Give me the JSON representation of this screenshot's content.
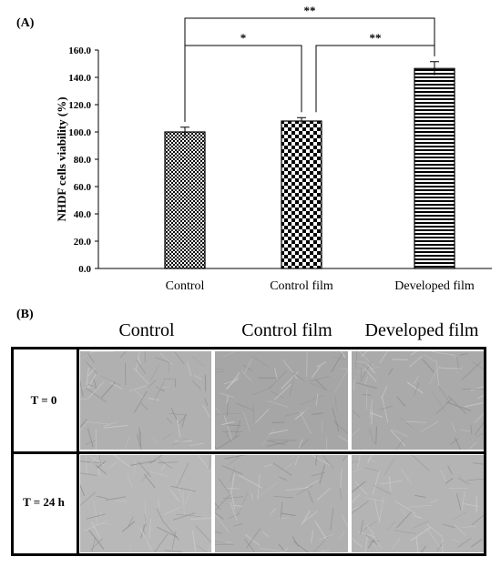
{
  "panel_a_label": "(A)",
  "panel_b_label": "(B)",
  "chart_data": {
    "type": "bar",
    "categories": [
      "Control",
      "Control film",
      "Developed film"
    ],
    "values": [
      100.0,
      108.0,
      146.5
    ],
    "errors": [
      3.5,
      2.5,
      5.0
    ],
    "ylabel": "NHDF cells viability (%)",
    "xlabel": "",
    "ylim": [
      0,
      160
    ],
    "yticks": [
      "0.0",
      "20.0",
      "40.0",
      "60.0",
      "80.0",
      "100.0",
      "120.0",
      "140.0",
      "160.0"
    ],
    "bar_patterns": [
      "small-checker",
      "large-checker",
      "horizontal-stripes"
    ],
    "significance": [
      {
        "from": "Control",
        "to": "Control film",
        "label": "*"
      },
      {
        "from": "Control film",
        "to": "Developed film",
        "label": "**"
      },
      {
        "from": "Control",
        "to": "Developed film",
        "label": "**"
      }
    ],
    "grid": false
  },
  "panel_b": {
    "columns": [
      "Control",
      "Control film",
      "Developed film"
    ],
    "rows": [
      "T = 0",
      "T = 24 h"
    ]
  }
}
